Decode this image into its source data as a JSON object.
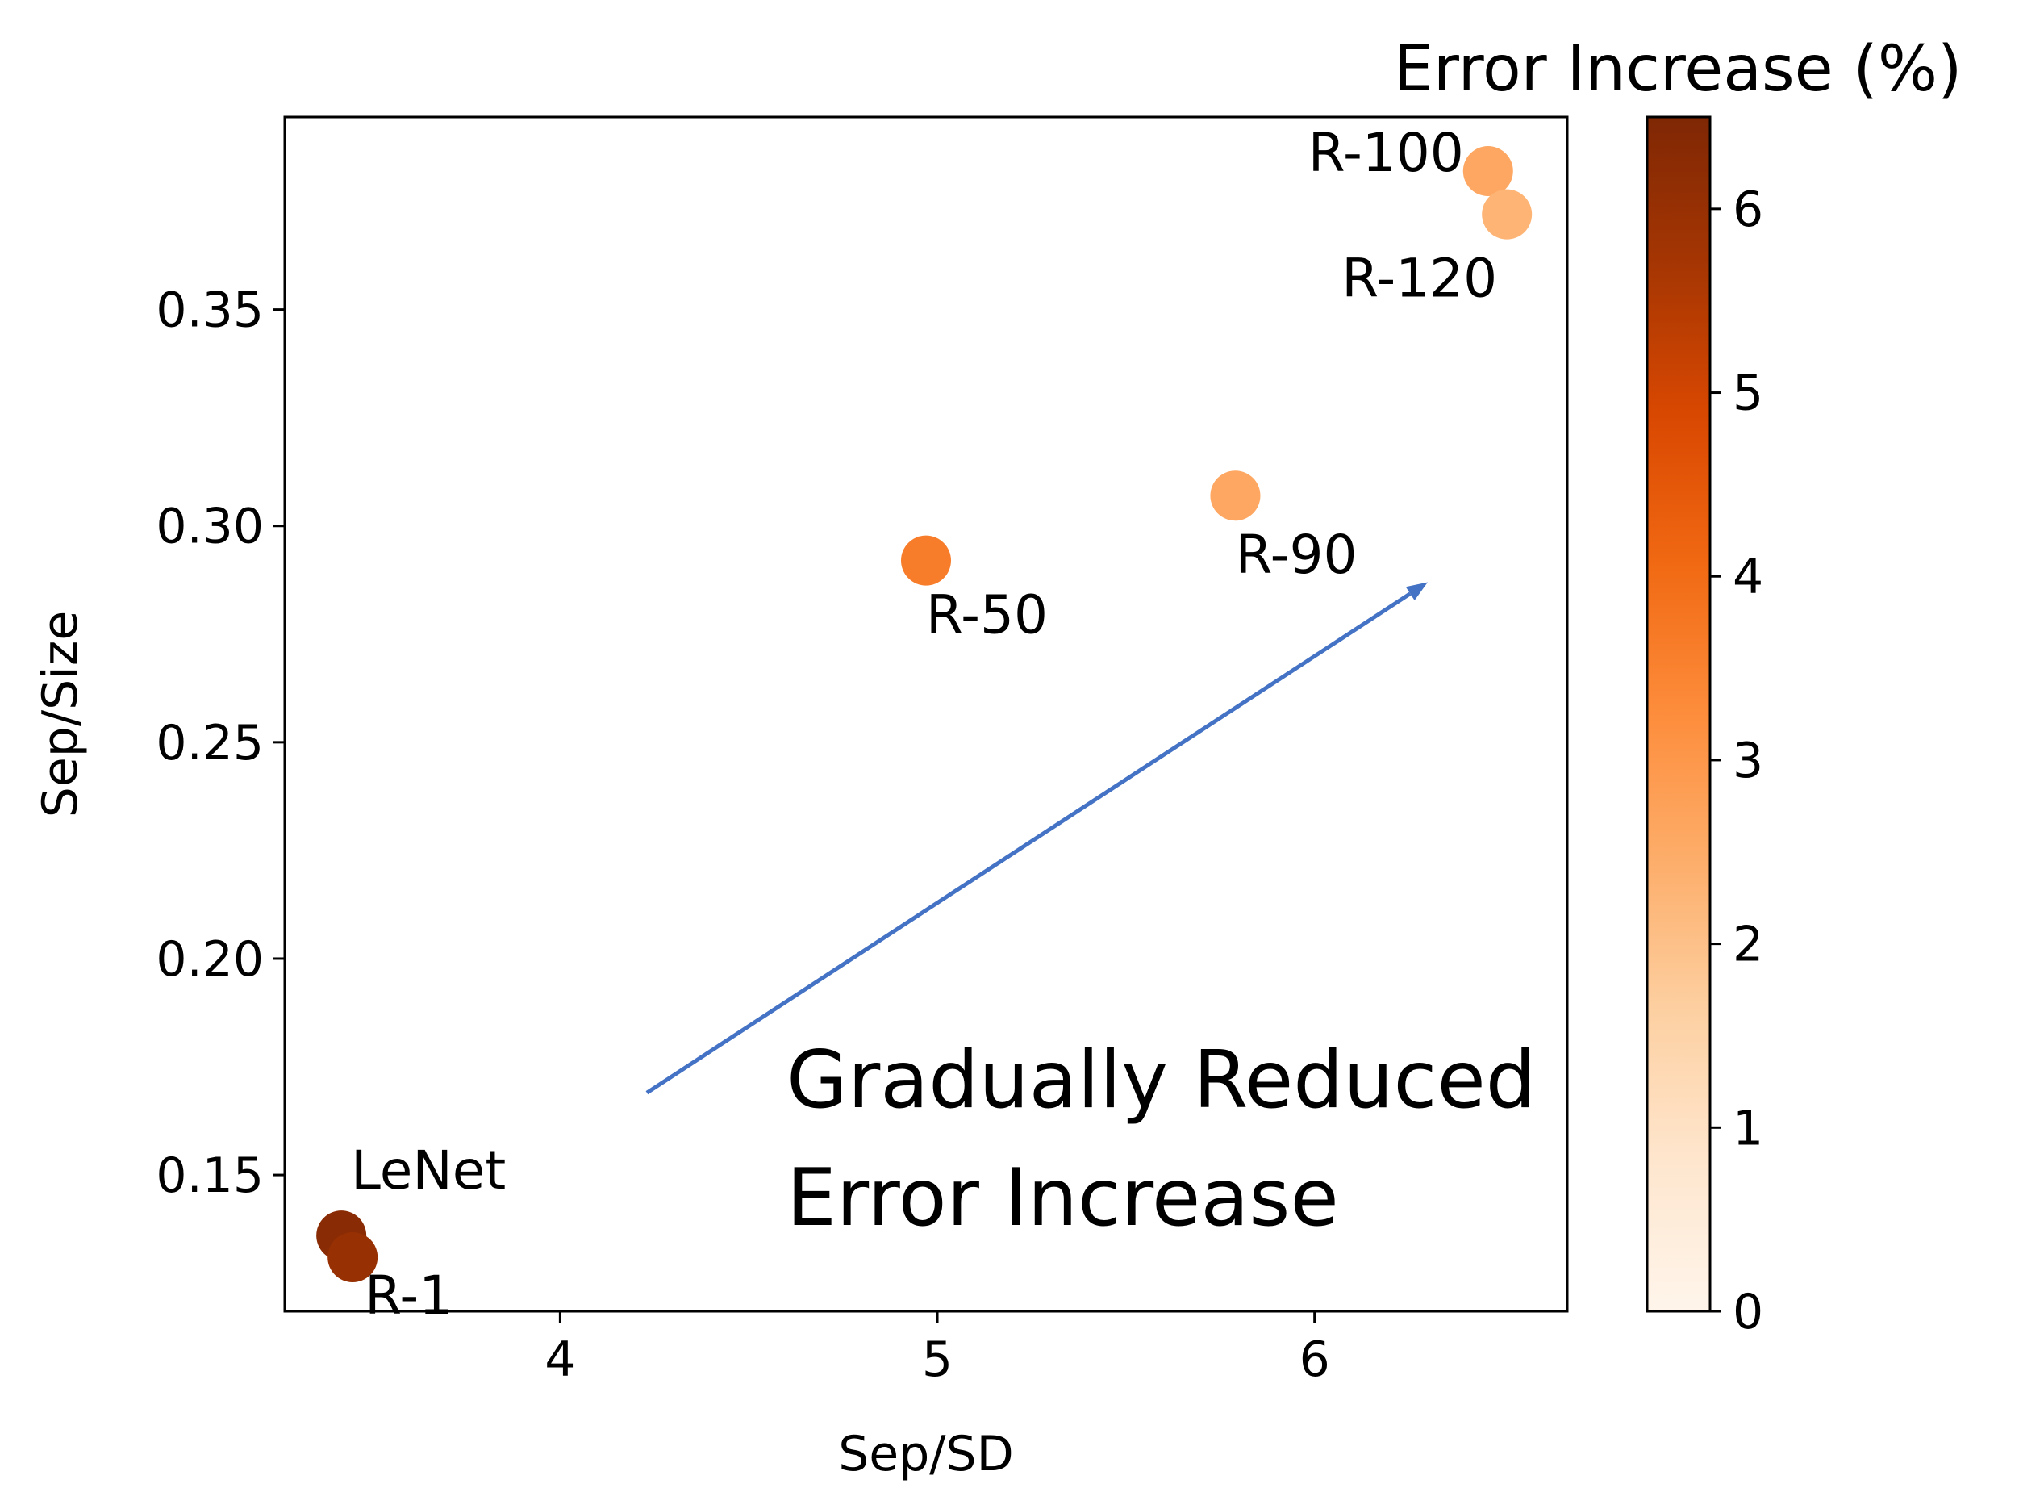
{
  "chart_data": {
    "type": "scatter",
    "xlabel": "Sep/SD",
    "ylabel": "Sep/Size",
    "xlim": [
      3.27,
      6.67
    ],
    "ylim": [
      0.1185,
      0.3945
    ],
    "xticks": [
      {
        "value": 4,
        "label": "4"
      },
      {
        "value": 5,
        "label": "5"
      },
      {
        "value": 6,
        "label": "6"
      }
    ],
    "yticks": [
      {
        "value": 0.15,
        "label": "0.15"
      },
      {
        "value": 0.2,
        "label": "0.20"
      },
      {
        "value": 0.25,
        "label": "0.25"
      },
      {
        "value": 0.3,
        "label": "0.30"
      },
      {
        "value": 0.35,
        "label": "0.35"
      }
    ],
    "grid": false,
    "points": [
      {
        "name": "LeNet",
        "x": 3.42,
        "y": 0.136,
        "error_increase": 6.3
      },
      {
        "name": "R-1",
        "x": 3.45,
        "y": 0.131,
        "error_increase": 6.0
      },
      {
        "name": "R-50",
        "x": 4.97,
        "y": 0.292,
        "error_increase": 3.6
      },
      {
        "name": "R-90",
        "x": 5.79,
        "y": 0.307,
        "error_increase": 2.6
      },
      {
        "name": "R-100",
        "x": 6.46,
        "y": 0.382,
        "error_increase": 2.6
      },
      {
        "name": "R-120",
        "x": 6.51,
        "y": 0.372,
        "error_increase": 2.3
      }
    ],
    "colorbar": {
      "title": "Error Increase (%)",
      "colormap": "Oranges",
      "range": [
        0,
        6.5
      ],
      "ticks": [
        {
          "value": 0,
          "label": "0"
        },
        {
          "value": 1,
          "label": "1"
        },
        {
          "value": 2,
          "label": "2"
        },
        {
          "value": 3,
          "label": "3"
        },
        {
          "value": 4,
          "label": "4"
        },
        {
          "value": 5,
          "label": "5"
        },
        {
          "value": 6,
          "label": "6"
        }
      ],
      "stops": [
        "#fff5eb",
        "#fee6ce",
        "#fdd0a2",
        "#fdae6b",
        "#fd8d3c",
        "#f16913",
        "#d94801",
        "#a63603",
        "#7f2704"
      ]
    },
    "arrow": {
      "color": "#4472c4",
      "from": {
        "x": 4.23,
        "y": 0.169
      },
      "to": {
        "x": 6.3,
        "y": 0.287
      }
    },
    "annotation": {
      "lines": [
        "Gradually Reduced",
        "Error Increase"
      ]
    }
  }
}
